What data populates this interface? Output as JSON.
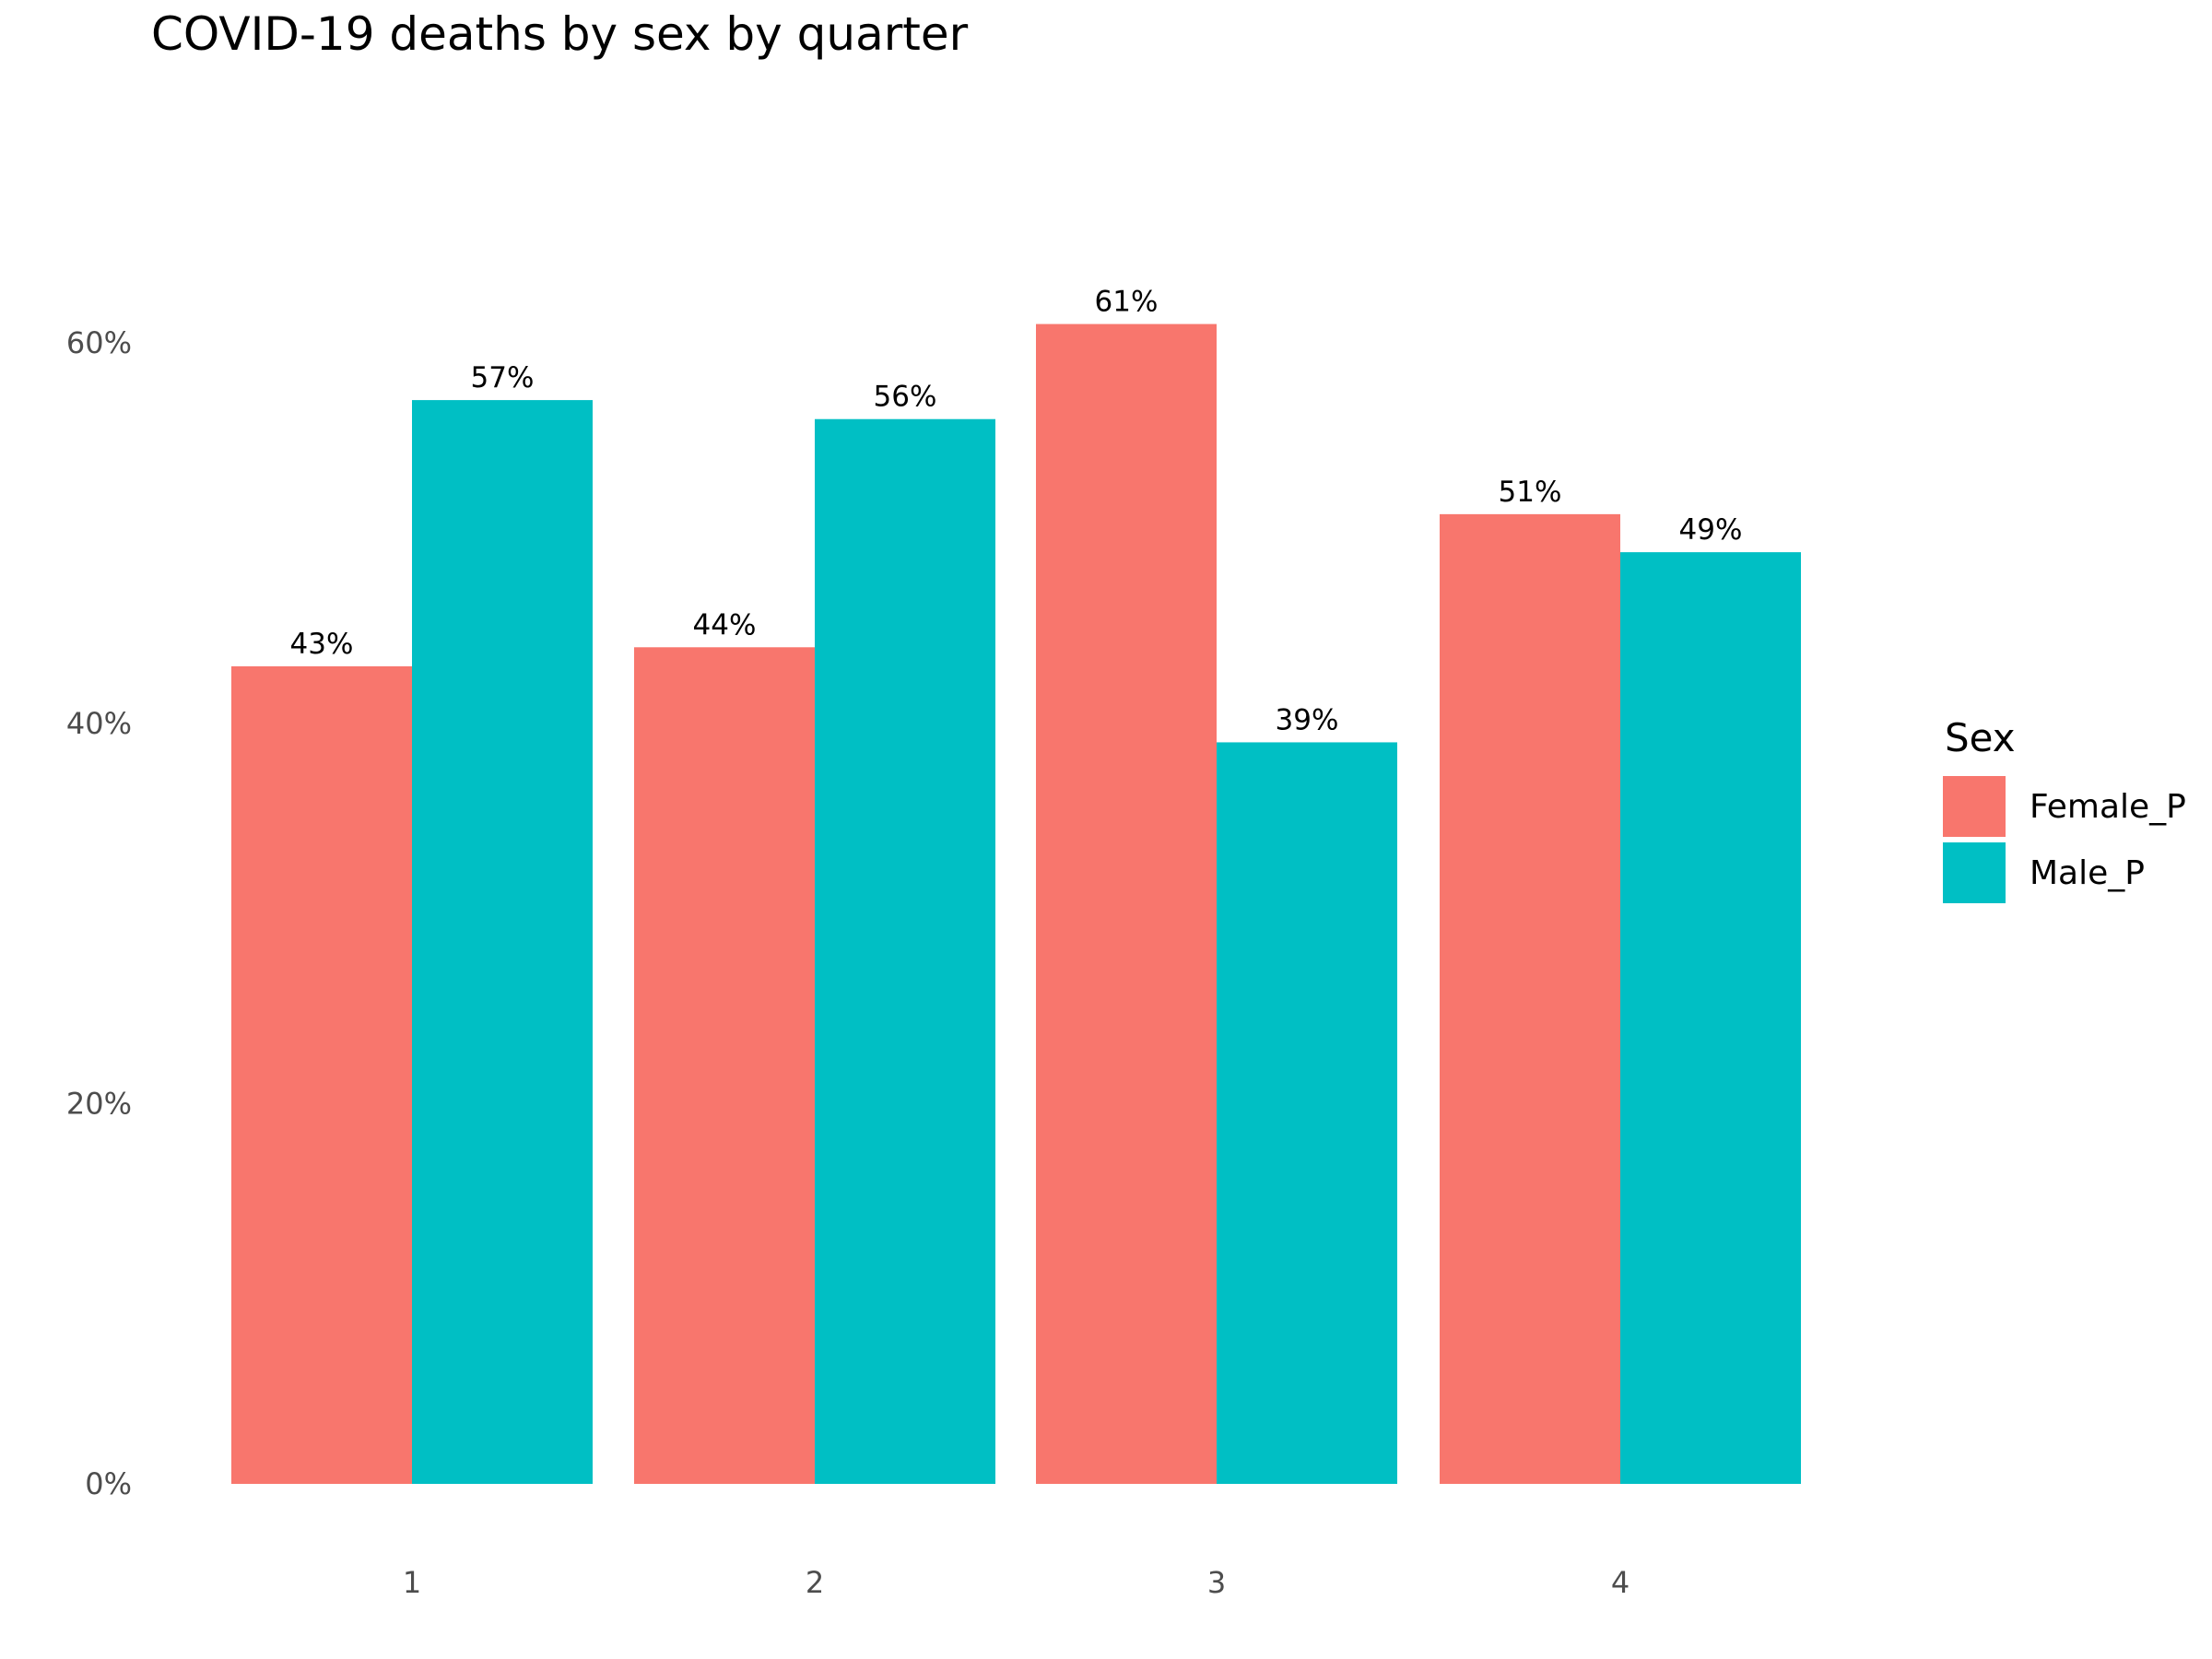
{
  "chart_data": {
    "type": "bar",
    "title": "COVID-19 deaths by sex by quarter",
    "xlabel": "",
    "ylabel": "",
    "categories": [
      "1",
      "2",
      "3",
      "4"
    ],
    "series": [
      {
        "name": "Female_P",
        "color": "#F8766D",
        "values": [
          43,
          44,
          61,
          51
        ],
        "labels": [
          "43%",
          "44%",
          "61%",
          "51%"
        ]
      },
      {
        "name": "Male_P",
        "color": "#00BFC4",
        "values": [
          57,
          56,
          39,
          49
        ],
        "labels": [
          "57%",
          "56%",
          "39%",
          "49%"
        ]
      }
    ],
    "ylim": [
      0,
      60
    ],
    "yticks": [
      0,
      20,
      40,
      60
    ],
    "ytick_labels": [
      "0%",
      "20%",
      "40%",
      "60%"
    ],
    "grid": false,
    "legend_title": "Sex",
    "legend_position": "right"
  }
}
